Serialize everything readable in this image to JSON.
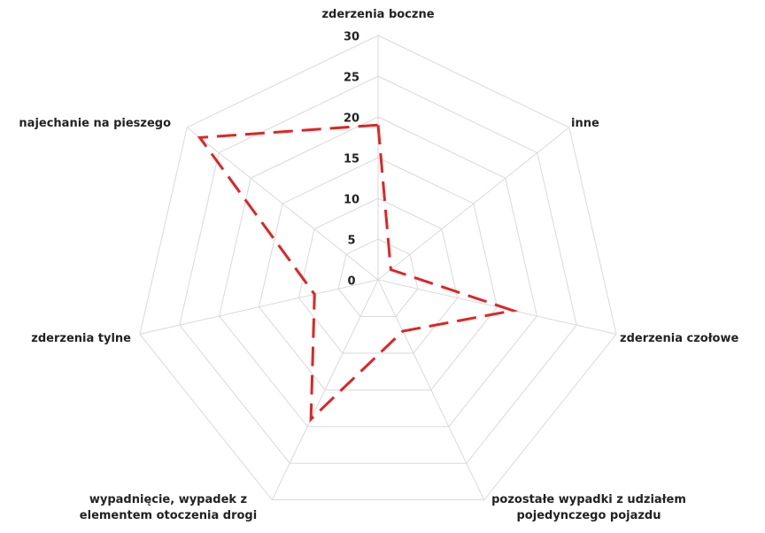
{
  "chart_data": {
    "type": "radar",
    "categories": [
      "zderzenia boczne",
      "inne",
      "zderzenia czołowe",
      "pozostałe wypadki z udziałem pojedynczego pojazdu",
      "wypadnięcie, wypadek z elementem otoczenia drogi",
      "zderzenia tylne",
      "najechanie na pieszego"
    ],
    "values": [
      19,
      2,
      17,
      7,
      19,
      8,
      28
    ],
    "color": "#e02424",
    "ylim": [
      0,
      30
    ],
    "yticks": [
      0,
      5,
      10,
      15,
      20,
      25,
      30
    ],
    "grid": true
  }
}
